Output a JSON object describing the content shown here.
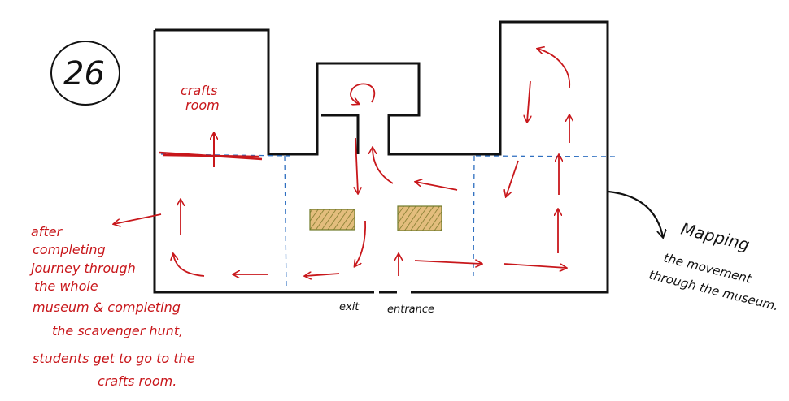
{
  "page_number": "26",
  "labels": {
    "crafts_room_line1": "crafts",
    "crafts_room_line2": "room",
    "exit": "exit",
    "entrance": "entrance"
  },
  "side_note": {
    "lines": [
      "after",
      "completing",
      "journey through",
      "the whole",
      "museum & completing",
      "the scavenger hunt,",
      "students get to go to the",
      "crafts room."
    ]
  },
  "caption": {
    "lines": [
      "Mapping",
      "the movement",
      "through the museum."
    ]
  },
  "colors": {
    "walls": "#111111",
    "arrows": "#c8171b",
    "dividers": "#2e6fc0",
    "exhibit_fill": "#e0b97a",
    "exhibit_hatch": "#8b7a2a",
    "crafts_line": "#c8171b"
  }
}
